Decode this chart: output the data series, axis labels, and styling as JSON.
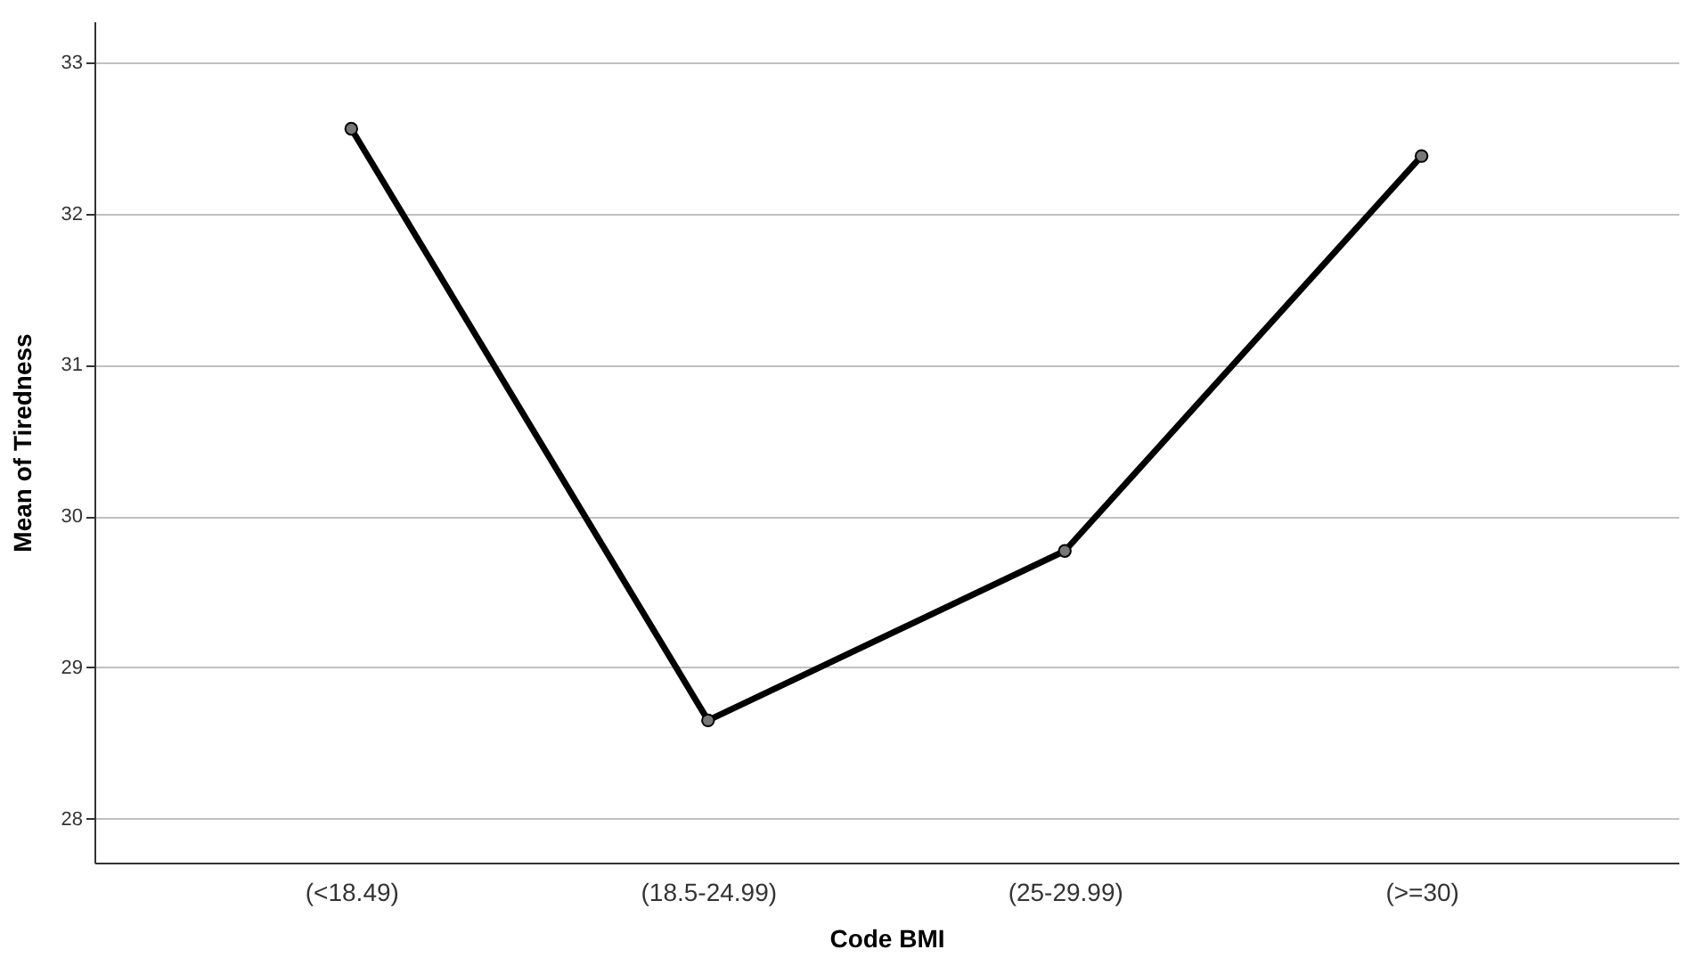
{
  "chart_data": {
    "type": "line",
    "xlabel": "Code BMI",
    "ylabel": "Mean of Tiredness",
    "categories": [
      "(<18.49)",
      "(18.5-24.99)",
      "(25-29.99)",
      "(>=30)"
    ],
    "series": [
      {
        "color": "#000000",
        "values": [
          32.56,
          28.65,
          29.77,
          32.38
        ]
      }
    ],
    "ylim": [
      27.71,
      33.27
    ],
    "yticks": [
      28,
      29,
      30,
      31,
      32,
      33
    ],
    "grid": "y",
    "marker": "circle",
    "line_style": "solid"
  }
}
